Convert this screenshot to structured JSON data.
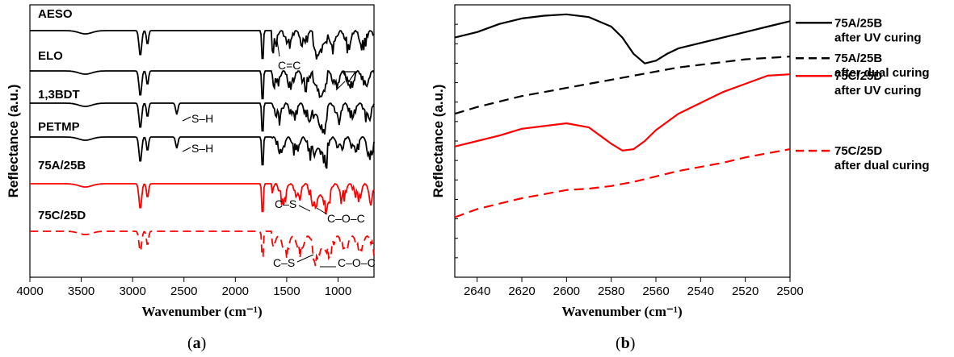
{
  "chart_data": [
    {
      "panel": "a",
      "type": "line",
      "title": "",
      "xlabel": "Wavenumber (cm⁻¹)",
      "ylabel": "Reflectance (a.u.)",
      "xlim": [
        4000,
        650
      ],
      "x_reversed": true,
      "xticks": [
        4000,
        3500,
        3000,
        2500,
        2000,
        1500,
        1000
      ],
      "grid": false,
      "legend": "labels-on-curves",
      "series": [
        {
          "name": "AESO",
          "color": "#000000",
          "style": "solid"
        },
        {
          "name": "ELO",
          "color": "#000000",
          "style": "solid"
        },
        {
          "name": "1,3BDT",
          "color": "#000000",
          "style": "solid"
        },
        {
          "name": "PETMP",
          "color": "#000000",
          "style": "solid"
        },
        {
          "name": "75A/25B",
          "color": "#ff0000",
          "style": "solid"
        },
        {
          "name": "75C/25D",
          "color": "#ff0000",
          "style": "dashed"
        }
      ],
      "annotations": [
        "C=C",
        "S–H",
        "S–H",
        "C–S",
        "C–O–C",
        "C–S",
        "C–O–C"
      ]
    },
    {
      "panel": "b",
      "type": "line",
      "title": "",
      "xlabel": "Wavenumber (cm⁻¹)",
      "ylabel": "Reflectance (a.u.)",
      "xlim": [
        2650,
        2500
      ],
      "x_reversed": true,
      "xticks": [
        2640,
        2620,
        2600,
        2580,
        2560,
        2540,
        2520,
        2500
      ],
      "grid": false,
      "legend": "right",
      "series": [
        {
          "name": "75A/25B after UV curing",
          "line1": "75A/25B",
          "line2": "after UV curing",
          "color": "#000000",
          "style": "solid",
          "x": [
            2650,
            2640,
            2630,
            2620,
            2610,
            2600,
            2590,
            2580,
            2575,
            2570,
            2565,
            2560,
            2555,
            2550,
            2540,
            2530,
            2520,
            2510,
            2500
          ],
          "y": [
            0.88,
            0.9,
            0.93,
            0.95,
            0.96,
            0.965,
            0.955,
            0.92,
            0.88,
            0.82,
            0.785,
            0.795,
            0.82,
            0.84,
            0.86,
            0.88,
            0.9,
            0.92,
            0.94
          ]
        },
        {
          "name": "75A/25B after dual curing",
          "line1": "75A/25B",
          "line2": "after dual curing",
          "color": "#000000",
          "style": "dashed",
          "x": [
            2650,
            2640,
            2630,
            2620,
            2610,
            2600,
            2590,
            2580,
            2570,
            2560,
            2550,
            2540,
            2530,
            2520,
            2510,
            2500
          ],
          "y": [
            0.6,
            0.625,
            0.645,
            0.665,
            0.68,
            0.695,
            0.71,
            0.725,
            0.74,
            0.755,
            0.77,
            0.78,
            0.79,
            0.8,
            0.805,
            0.81
          ]
        },
        {
          "name": "75C/25D after UV curing",
          "line1": "75C/25D",
          "line2": "after UV curing",
          "color": "#ff0000",
          "style": "solid",
          "x": [
            2650,
            2640,
            2630,
            2620,
            2610,
            2600,
            2590,
            2585,
            2580,
            2575,
            2570,
            2565,
            2560,
            2550,
            2540,
            2530,
            2520,
            2510,
            2500
          ],
          "y": [
            0.48,
            0.5,
            0.52,
            0.545,
            0.555,
            0.565,
            0.55,
            0.52,
            0.49,
            0.465,
            0.47,
            0.5,
            0.54,
            0.6,
            0.64,
            0.68,
            0.71,
            0.74,
            0.745
          ]
        },
        {
          "name": "75C/25D after dual curing",
          "line1": "75C/25D",
          "line2": "after dual curing",
          "color": "#ff0000",
          "style": "dashed",
          "x": [
            2650,
            2640,
            2630,
            2620,
            2610,
            2600,
            2590,
            2580,
            2570,
            2560,
            2550,
            2540,
            2530,
            2520,
            2510,
            2500
          ],
          "y": [
            0.22,
            0.25,
            0.27,
            0.29,
            0.305,
            0.32,
            0.325,
            0.335,
            0.35,
            0.37,
            0.39,
            0.405,
            0.42,
            0.44,
            0.455,
            0.47
          ]
        }
      ]
    }
  ],
  "panels": {
    "a": "(a)",
    "b": "(b)",
    "a_letter": "a",
    "b_letter": "b"
  }
}
